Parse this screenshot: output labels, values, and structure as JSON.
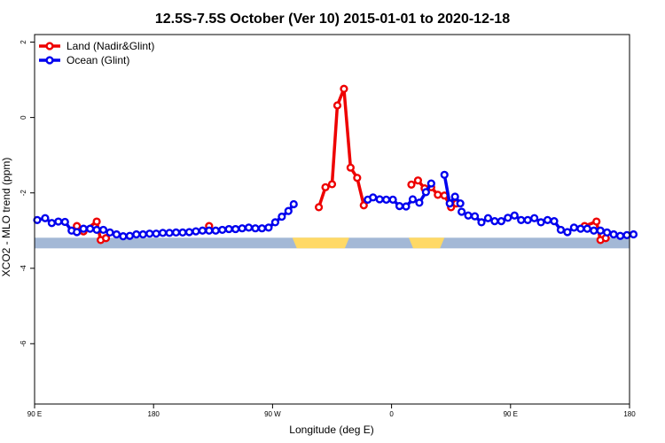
{
  "chart_data": {
    "type": "line",
    "title": "12.5S-7.5S October (Ver 10)   2015-01-01 to 2020-12-18",
    "xlabel": "Longitude (deg E)",
    "ylabel": "XCO2 - MLO trend (ppm)",
    "x_ticks": [
      {
        "value": 90,
        "label": "90 E"
      },
      {
        "value": 180,
        "label": "180"
      },
      {
        "value": 270,
        "label": "90 W"
      },
      {
        "value": 360,
        "label": "0"
      },
      {
        "value": 450,
        "label": "90 E"
      },
      {
        "value": 540,
        "label": "180"
      }
    ],
    "y_ticks": [
      {
        "value": 2,
        "label": "2"
      },
      {
        "value": 0,
        "label": "0"
      },
      {
        "value": -2,
        "label": "-2"
      },
      {
        "value": -4,
        "label": "-4"
      },
      {
        "value": -6,
        "label": "-6"
      }
    ],
    "xlim": [
      90,
      540
    ],
    "ylim": [
      -7.6,
      2.2
    ],
    "grid": false,
    "legend_position": "top-left",
    "land_strip": {
      "y": -3.33,
      "ocean_color": "#a3b8d6",
      "land_color": "#ffd966",
      "land_ranges": [
        [
          285,
          328
        ],
        [
          373,
          400
        ]
      ]
    },
    "series": [
      {
        "name": "Land (Nadir&Glint)",
        "color": "#ee0000",
        "segments": [
          [
            [
              122,
              -2.88
            ],
            [
              127,
              -3.02
            ],
            [
              137,
              -2.76
            ],
            [
              140,
              -3.25
            ],
            [
              144,
              -3.2
            ]
          ],
          [
            [
              222,
              -2.88
            ]
          ],
          [
            [
              305,
              -2.38
            ],
            [
              310,
              -1.85
            ],
            [
              315,
              -1.77
            ],
            [
              319,
              0.32
            ],
            [
              324,
              0.76
            ],
            [
              329,
              -1.33
            ],
            [
              334,
              -1.6
            ],
            [
              339,
              -2.33
            ]
          ],
          [
            [
              375,
              -1.78
            ],
            [
              380,
              -1.67
            ],
            [
              385,
              -1.88
            ],
            [
              390,
              -1.85
            ],
            [
              395,
              -2.05
            ],
            [
              400,
              -2.07
            ],
            [
              405,
              -2.38
            ],
            [
              409,
              -2.28
            ]
          ],
          [
            [
              506,
              -2.88
            ],
            [
              515,
              -2.76
            ],
            [
              518,
              -3.25
            ],
            [
              522,
              -3.2
            ]
          ]
        ]
      },
      {
        "name": "Ocean (Glint)",
        "color": "#0000ee",
        "segments": [
          [
            [
              92,
              -2.72
            ],
            [
              98,
              -2.67
            ],
            [
              103,
              -2.8
            ],
            [
              108,
              -2.76
            ],
            [
              113,
              -2.77
            ],
            [
              118,
              -3.0
            ],
            [
              122,
              -3.04
            ],
            [
              127,
              -2.95
            ],
            [
              132,
              -2.95
            ],
            [
              137,
              -2.98
            ],
            [
              142,
              -2.98
            ],
            [
              147,
              -3.05
            ],
            [
              152,
              -3.1
            ],
            [
              157,
              -3.15
            ],
            [
              162,
              -3.14
            ],
            [
              167,
              -3.1
            ],
            [
              172,
              -3.1
            ],
            [
              177,
              -3.08
            ],
            [
              182,
              -3.08
            ],
            [
              187,
              -3.06
            ],
            [
              192,
              -3.06
            ],
            [
              197,
              -3.05
            ],
            [
              202,
              -3.05
            ],
            [
              207,
              -3.04
            ],
            [
              212,
              -3.02
            ],
            [
              217,
              -3.0
            ],
            [
              222,
              -3.0
            ],
            [
              227,
              -3.0
            ],
            [
              232,
              -2.98
            ],
            [
              237,
              -2.96
            ],
            [
              242,
              -2.96
            ],
            [
              247,
              -2.94
            ],
            [
              252,
              -2.92
            ],
            [
              257,
              -2.94
            ],
            [
              262,
              -2.94
            ],
            [
              267,
              -2.92
            ],
            [
              272,
              -2.78
            ],
            [
              277,
              -2.63
            ],
            [
              282,
              -2.48
            ],
            [
              286,
              -2.3
            ]
          ],
          [
            [
              342,
              -2.18
            ],
            [
              346,
              -2.12
            ],
            [
              351,
              -2.17
            ],
            [
              356,
              -2.18
            ],
            [
              361,
              -2.18
            ],
            [
              366,
              -2.35
            ],
            [
              371,
              -2.36
            ],
            [
              376,
              -2.17
            ],
            [
              381,
              -2.26
            ],
            [
              386,
              -1.98
            ],
            [
              390,
              -1.75
            ]
          ],
          [
            [
              400,
              -1.52
            ],
            [
              404,
              -2.28
            ],
            [
              408,
              -2.1
            ],
            [
              412,
              -2.28
            ]
          ],
          [
            [
              413,
              -2.5
            ],
            [
              418,
              -2.6
            ],
            [
              423,
              -2.62
            ],
            [
              428,
              -2.78
            ],
            [
              433,
              -2.67
            ],
            [
              438,
              -2.75
            ],
            [
              443,
              -2.75
            ],
            [
              448,
              -2.66
            ],
            [
              453,
              -2.6
            ],
            [
              458,
              -2.72
            ],
            [
              463,
              -2.72
            ],
            [
              468,
              -2.67
            ],
            [
              473,
              -2.78
            ],
            [
              478,
              -2.72
            ],
            [
              483,
              -2.75
            ],
            [
              488,
              -2.98
            ],
            [
              493,
              -3.04
            ],
            [
              498,
              -2.92
            ],
            [
              503,
              -2.95
            ],
            [
              508,
              -2.95
            ],
            [
              513,
              -3.0
            ],
            [
              518,
              -3.0
            ],
            [
              523,
              -3.05
            ],
            [
              528,
              -3.1
            ],
            [
              533,
              -3.14
            ],
            [
              538,
              -3.12
            ],
            [
              543,
              -3.1
            ]
          ]
        ]
      }
    ]
  }
}
